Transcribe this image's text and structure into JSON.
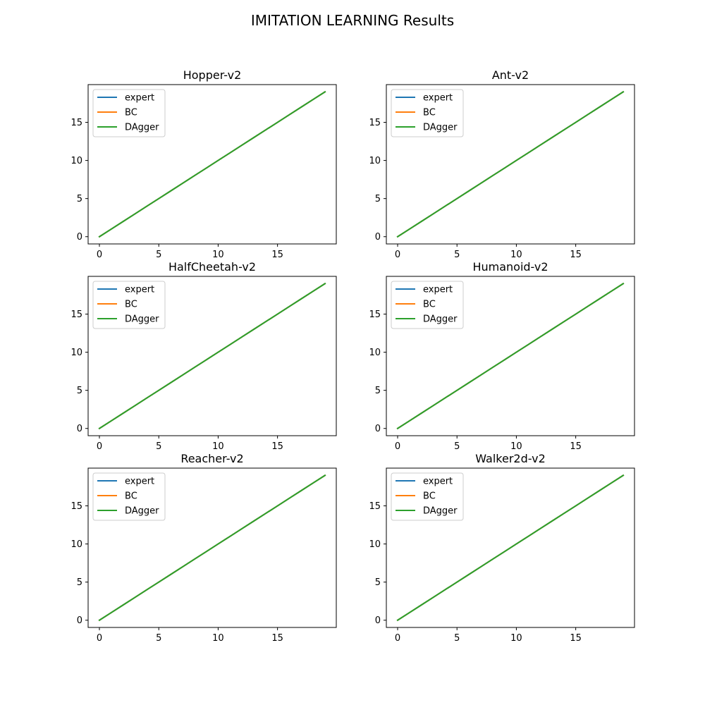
{
  "figure": {
    "title": "IMITATION LEARNING Results"
  },
  "series_colors": {
    "expert": "#1f77b4",
    "BC": "#ff7f0e",
    "DAgger": "#2ca02c"
  },
  "chart_data": [
    {
      "type": "line",
      "title": "Hopper-v2",
      "xlabel": "",
      "ylabel": "",
      "x": [
        0,
        1,
        2,
        3,
        4,
        5,
        6,
        7,
        8,
        9,
        10,
        11,
        12,
        13,
        14,
        15,
        16,
        17,
        18,
        19
      ],
      "series": [
        {
          "name": "expert",
          "values": [
            0,
            1,
            2,
            3,
            4,
            5,
            6,
            7,
            8,
            9,
            10,
            11,
            12,
            13,
            14,
            15,
            16,
            17,
            18,
            19
          ]
        },
        {
          "name": "BC",
          "values": [
            0,
            1,
            2,
            3,
            4,
            5,
            6,
            7,
            8,
            9,
            10,
            11,
            12,
            13,
            14,
            15,
            16,
            17,
            18,
            19
          ]
        },
        {
          "name": "DAgger",
          "values": [
            0,
            1,
            2,
            3,
            4,
            5,
            6,
            7,
            8,
            9,
            10,
            11,
            12,
            13,
            14,
            15,
            16,
            17,
            18,
            19
          ]
        }
      ],
      "xlim": [
        -0.95,
        19.95
      ],
      "ylim": [
        -0.95,
        19.95
      ],
      "xticks": [
        0,
        5,
        10,
        15
      ],
      "yticks": [
        0,
        5,
        10,
        15
      ],
      "legend": "upper-left",
      "grid": false
    },
    {
      "type": "line",
      "title": "Ant-v2",
      "xlabel": "",
      "ylabel": "",
      "x": [
        0,
        1,
        2,
        3,
        4,
        5,
        6,
        7,
        8,
        9,
        10,
        11,
        12,
        13,
        14,
        15,
        16,
        17,
        18,
        19
      ],
      "series": [
        {
          "name": "expert",
          "values": [
            0,
            1,
            2,
            3,
            4,
            5,
            6,
            7,
            8,
            9,
            10,
            11,
            12,
            13,
            14,
            15,
            16,
            17,
            18,
            19
          ]
        },
        {
          "name": "BC",
          "values": [
            0,
            1,
            2,
            3,
            4,
            5,
            6,
            7,
            8,
            9,
            10,
            11,
            12,
            13,
            14,
            15,
            16,
            17,
            18,
            19
          ]
        },
        {
          "name": "DAgger",
          "values": [
            0,
            1,
            2,
            3,
            4,
            5,
            6,
            7,
            8,
            9,
            10,
            11,
            12,
            13,
            14,
            15,
            16,
            17,
            18,
            19
          ]
        }
      ],
      "xlim": [
        -0.95,
        19.95
      ],
      "ylim": [
        -0.95,
        19.95
      ],
      "xticks": [
        0,
        5,
        10,
        15
      ],
      "yticks": [
        0,
        5,
        10,
        15
      ],
      "legend": "upper-left",
      "grid": false
    },
    {
      "type": "line",
      "title": "HalfCheetah-v2",
      "xlabel": "",
      "ylabel": "",
      "x": [
        0,
        1,
        2,
        3,
        4,
        5,
        6,
        7,
        8,
        9,
        10,
        11,
        12,
        13,
        14,
        15,
        16,
        17,
        18,
        19
      ],
      "series": [
        {
          "name": "expert",
          "values": [
            0,
            1,
            2,
            3,
            4,
            5,
            6,
            7,
            8,
            9,
            10,
            11,
            12,
            13,
            14,
            15,
            16,
            17,
            18,
            19
          ]
        },
        {
          "name": "BC",
          "values": [
            0,
            1,
            2,
            3,
            4,
            5,
            6,
            7,
            8,
            9,
            10,
            11,
            12,
            13,
            14,
            15,
            16,
            17,
            18,
            19
          ]
        },
        {
          "name": "DAgger",
          "values": [
            0,
            1,
            2,
            3,
            4,
            5,
            6,
            7,
            8,
            9,
            10,
            11,
            12,
            13,
            14,
            15,
            16,
            17,
            18,
            19
          ]
        }
      ],
      "xlim": [
        -0.95,
        19.95
      ],
      "ylim": [
        -0.95,
        19.95
      ],
      "xticks": [
        0,
        5,
        10,
        15
      ],
      "yticks": [
        0,
        5,
        10,
        15
      ],
      "legend": "upper-left",
      "grid": false
    },
    {
      "type": "line",
      "title": "Humanoid-v2",
      "xlabel": "",
      "ylabel": "",
      "x": [
        0,
        1,
        2,
        3,
        4,
        5,
        6,
        7,
        8,
        9,
        10,
        11,
        12,
        13,
        14,
        15,
        16,
        17,
        18,
        19
      ],
      "series": [
        {
          "name": "expert",
          "values": [
            0,
            1,
            2,
            3,
            4,
            5,
            6,
            7,
            8,
            9,
            10,
            11,
            12,
            13,
            14,
            15,
            16,
            17,
            18,
            19
          ]
        },
        {
          "name": "BC",
          "values": [
            0,
            1,
            2,
            3,
            4,
            5,
            6,
            7,
            8,
            9,
            10,
            11,
            12,
            13,
            14,
            15,
            16,
            17,
            18,
            19
          ]
        },
        {
          "name": "DAgger",
          "values": [
            0,
            1,
            2,
            3,
            4,
            5,
            6,
            7,
            8,
            9,
            10,
            11,
            12,
            13,
            14,
            15,
            16,
            17,
            18,
            19
          ]
        }
      ],
      "xlim": [
        -0.95,
        19.95
      ],
      "ylim": [
        -0.95,
        19.95
      ],
      "xticks": [
        0,
        5,
        10,
        15
      ],
      "yticks": [
        0,
        5,
        10,
        15
      ],
      "legend": "upper-left",
      "grid": false
    },
    {
      "type": "line",
      "title": "Reacher-v2",
      "xlabel": "",
      "ylabel": "",
      "x": [
        0,
        1,
        2,
        3,
        4,
        5,
        6,
        7,
        8,
        9,
        10,
        11,
        12,
        13,
        14,
        15,
        16,
        17,
        18,
        19
      ],
      "series": [
        {
          "name": "expert",
          "values": [
            0,
            1,
            2,
            3,
            4,
            5,
            6,
            7,
            8,
            9,
            10,
            11,
            12,
            13,
            14,
            15,
            16,
            17,
            18,
            19
          ]
        },
        {
          "name": "BC",
          "values": [
            0,
            1,
            2,
            3,
            4,
            5,
            6,
            7,
            8,
            9,
            10,
            11,
            12,
            13,
            14,
            15,
            16,
            17,
            18,
            19
          ]
        },
        {
          "name": "DAgger",
          "values": [
            0,
            1,
            2,
            3,
            4,
            5,
            6,
            7,
            8,
            9,
            10,
            11,
            12,
            13,
            14,
            15,
            16,
            17,
            18,
            19
          ]
        }
      ],
      "xlim": [
        -0.95,
        19.95
      ],
      "ylim": [
        -0.95,
        19.95
      ],
      "xticks": [
        0,
        5,
        10,
        15
      ],
      "yticks": [
        0,
        5,
        10,
        15
      ],
      "legend": "upper-left",
      "grid": false
    },
    {
      "type": "line",
      "title": "Walker2d-v2",
      "xlabel": "",
      "ylabel": "",
      "x": [
        0,
        1,
        2,
        3,
        4,
        5,
        6,
        7,
        8,
        9,
        10,
        11,
        12,
        13,
        14,
        15,
        16,
        17,
        18,
        19
      ],
      "series": [
        {
          "name": "expert",
          "values": [
            0,
            1,
            2,
            3,
            4,
            5,
            6,
            7,
            8,
            9,
            10,
            11,
            12,
            13,
            14,
            15,
            16,
            17,
            18,
            19
          ]
        },
        {
          "name": "BC",
          "values": [
            0,
            1,
            2,
            3,
            4,
            5,
            6,
            7,
            8,
            9,
            10,
            11,
            12,
            13,
            14,
            15,
            16,
            17,
            18,
            19
          ]
        },
        {
          "name": "DAgger",
          "values": [
            0,
            1,
            2,
            3,
            4,
            5,
            6,
            7,
            8,
            9,
            10,
            11,
            12,
            13,
            14,
            15,
            16,
            17,
            18,
            19
          ]
        }
      ],
      "xlim": [
        -0.95,
        19.95
      ],
      "ylim": [
        -0.95,
        19.95
      ],
      "xticks": [
        0,
        5,
        10,
        15
      ],
      "yticks": [
        0,
        5,
        10,
        15
      ],
      "legend": "upper-left",
      "grid": false
    }
  ]
}
